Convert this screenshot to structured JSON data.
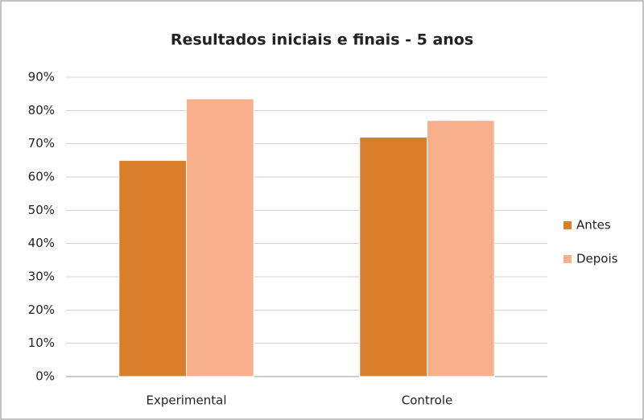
{
  "chart_data": {
    "type": "bar",
    "title": "Resultados iniciais e finais - 5 anos",
    "categories": [
      "Experimental",
      "Controle"
    ],
    "series": [
      {
        "name": "Antes",
        "color": "#d97f2b",
        "values": [
          65,
          72
        ]
      },
      {
        "name": "Depois",
        "color": "#f7b08b",
        "values": [
          83.5,
          77
        ]
      }
    ],
    "ylim": [
      0,
      90
    ],
    "yticks": [
      {
        "value": 0,
        "label": "0%"
      },
      {
        "value": 10,
        "label": "10%"
      },
      {
        "value": 20,
        "label": "20%"
      },
      {
        "value": 30,
        "label": "30%"
      },
      {
        "value": 40,
        "label": "40%"
      },
      {
        "value": 50,
        "label": "50%"
      },
      {
        "value": 60,
        "label": "60%"
      },
      {
        "value": 70,
        "label": "70%"
      },
      {
        "value": 80,
        "label": "80%"
      },
      {
        "value": 90,
        "label": "90%"
      }
    ],
    "grid": true,
    "legend": "right"
  }
}
